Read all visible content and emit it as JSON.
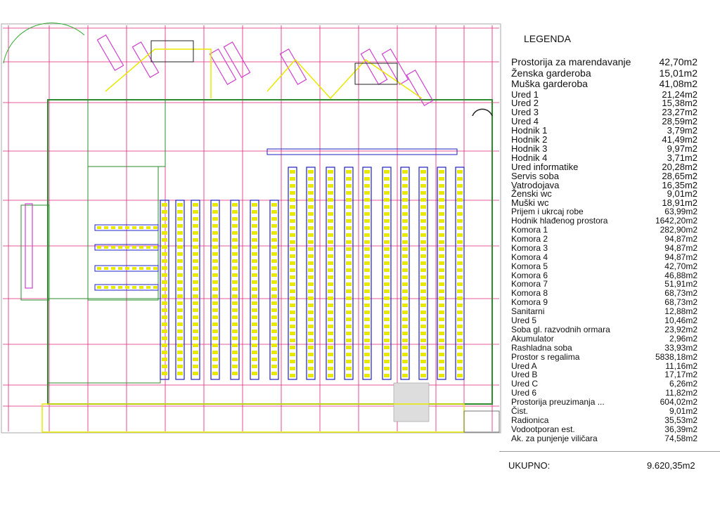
{
  "legend": {
    "title": "LEGENDA",
    "items": [
      {
        "name": "Prostorija za marendavanje",
        "area": "42,70m2"
      },
      {
        "name": "Ženska garderoba",
        "area": "15,01m2"
      },
      {
        "name": "Muška garderoba",
        "area": "41,08m2"
      },
      {
        "name": "Ured 1",
        "area": "21,24m2"
      },
      {
        "name": "Ured 2",
        "area": "15,38m2"
      },
      {
        "name": "Ured 3",
        "area": "23,27m2"
      },
      {
        "name": "Ured 4",
        "area": "28,59m2"
      },
      {
        "name": "Hodnik 1",
        "area": "3,79m2"
      },
      {
        "name": "Hodnik 2",
        "area": "41,49m2"
      },
      {
        "name": "Hodnik 3",
        "area": "9,97m2"
      },
      {
        "name": "Hodnik 4",
        "area": "3,71m2"
      },
      {
        "name": "Ured informatike",
        "area": "20,28m2"
      },
      {
        "name": "Servis soba",
        "area": "28,65m2"
      },
      {
        "name": "Vatrodojava",
        "area": "16,35m2"
      },
      {
        "name": "Ženski wc",
        "area": "9,01m2"
      },
      {
        "name": "Muški wc",
        "area": "18,91m2"
      },
      {
        "name": "Prijem i ukrcaj robe",
        "area": "63,99m2"
      },
      {
        "name": "Hodnik hlađenog prostora",
        "area": "1642,20m2"
      },
      {
        "name": "Komora 1",
        "area": "282,90m2"
      },
      {
        "name": "Komora 2",
        "area": "94,87m2"
      },
      {
        "name": "Komora 3",
        "area": "94,87m2"
      },
      {
        "name": "Komora 4",
        "area": "94,87m2"
      },
      {
        "name": "Komora 5",
        "area": "42,70m2"
      },
      {
        "name": "Komora 6",
        "area": "46,88m2"
      },
      {
        "name": "Komora 7",
        "area": "51,91m2"
      },
      {
        "name": "Komora 8",
        "area": "68,73m2"
      },
      {
        "name": "Komora 9",
        "area": "68,73m2"
      },
      {
        "name": "Sanitarni",
        "area": "12,88m2"
      },
      {
        "name": "Ured 5",
        "area": "10,46m2"
      },
      {
        "name": "Soba gl. razvodnih ormara",
        "area": "23,92m2"
      },
      {
        "name": "Akumulator",
        "area": "2,96m2"
      },
      {
        "name": "Rashladna soba",
        "area": "33,93m2"
      },
      {
        "name": "Prostor s regalima",
        "area": "5838,18m2"
      },
      {
        "name": "Ured A",
        "area": "11,16m2"
      },
      {
        "name": "Ured B",
        "area": "17,17m2"
      },
      {
        "name": "Ured C",
        "area": "6,26m2"
      },
      {
        "name": "Ured 6",
        "area": "11,82m2"
      },
      {
        "name": "Prostorija preuzimanja ...",
        "area": "604,02m2"
      },
      {
        "name": "Čist.",
        "area": "9,01m2"
      },
      {
        "name": "Radionica",
        "area": "35,53m2"
      },
      {
        "name": "Vodootporan est.",
        "area": "36,39m2"
      },
      {
        "name": "Ak. za punjenje viličara",
        "area": "74,58m2"
      }
    ],
    "total_label": "UKUPNO:",
    "total_value": "9.620,35m2"
  },
  "colors": {
    "grid": "#e0207a",
    "walls": "#2e8b2e",
    "racks": "#2020c0",
    "rack_fill": "#e8e800",
    "docks": "#d040d0"
  }
}
